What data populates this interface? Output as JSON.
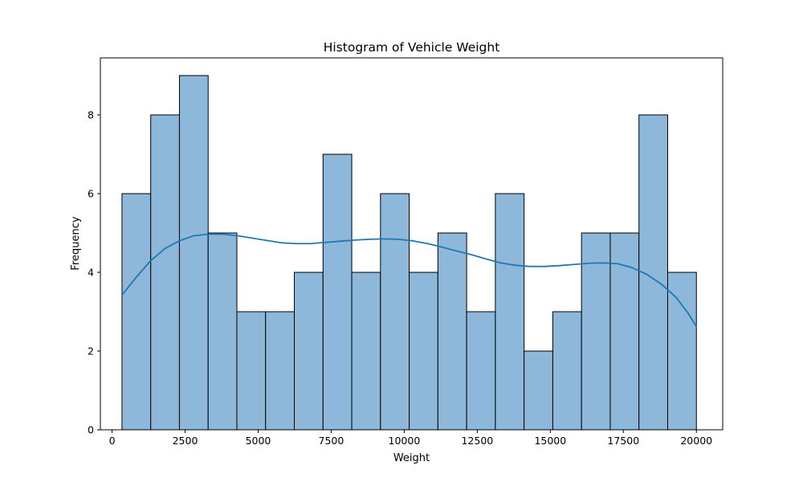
{
  "chart_data": {
    "type": "bar",
    "subtype": "histogram-with-kde",
    "title": "Histogram of Vehicle Weight",
    "xlabel": "Weight",
    "ylabel": "Frequency",
    "xlim": [
      -400,
      20900
    ],
    "ylim": [
      0,
      9.45
    ],
    "xticks": [
      0,
      2500,
      5000,
      7500,
      10000,
      12500,
      15000,
      17500,
      20000
    ],
    "yticks": [
      0,
      2,
      4,
      6,
      8
    ],
    "grid": false,
    "legend": "none",
    "bins": {
      "edges": [
        340,
        1323,
        2306,
        3289,
        4272,
        5255,
        6238,
        7221,
        8204,
        9187,
        10170,
        11153,
        12136,
        13119,
        14102,
        15085,
        16068,
        17051,
        18034,
        19017,
        20000
      ],
      "counts": [
        6,
        8,
        9,
        5,
        3,
        3,
        4,
        7,
        4,
        6,
        4,
        5,
        3,
        6,
        2,
        3,
        5,
        5,
        8,
        4
      ]
    },
    "kde": {
      "x": [
        340,
        800,
        1300,
        1800,
        2300,
        2800,
        3300,
        3800,
        4300,
        4800,
        5300,
        5800,
        6300,
        6800,
        7300,
        7800,
        8300,
        8800,
        9300,
        9800,
        10300,
        10800,
        11300,
        11800,
        12300,
        12800,
        13300,
        13800,
        14300,
        14800,
        15300,
        15800,
        16300,
        16800,
        17300,
        17800,
        18300,
        18800,
        19300,
        19700,
        20000
      ],
      "y": [
        3.42,
        3.85,
        4.28,
        4.6,
        4.8,
        4.93,
        4.97,
        4.97,
        4.93,
        4.87,
        4.81,
        4.75,
        4.73,
        4.73,
        4.76,
        4.79,
        4.82,
        4.84,
        4.85,
        4.84,
        4.8,
        4.73,
        4.64,
        4.54,
        4.45,
        4.34,
        4.24,
        4.18,
        4.15,
        4.15,
        4.17,
        4.2,
        4.23,
        4.24,
        4.22,
        4.12,
        3.95,
        3.7,
        3.37,
        2.98,
        2.62
      ]
    },
    "colors": {
      "bar_fill": "#8db8d9",
      "bar_edge": "#000000",
      "kde_line": "#1f77b4",
      "axis": "#000000"
    }
  }
}
